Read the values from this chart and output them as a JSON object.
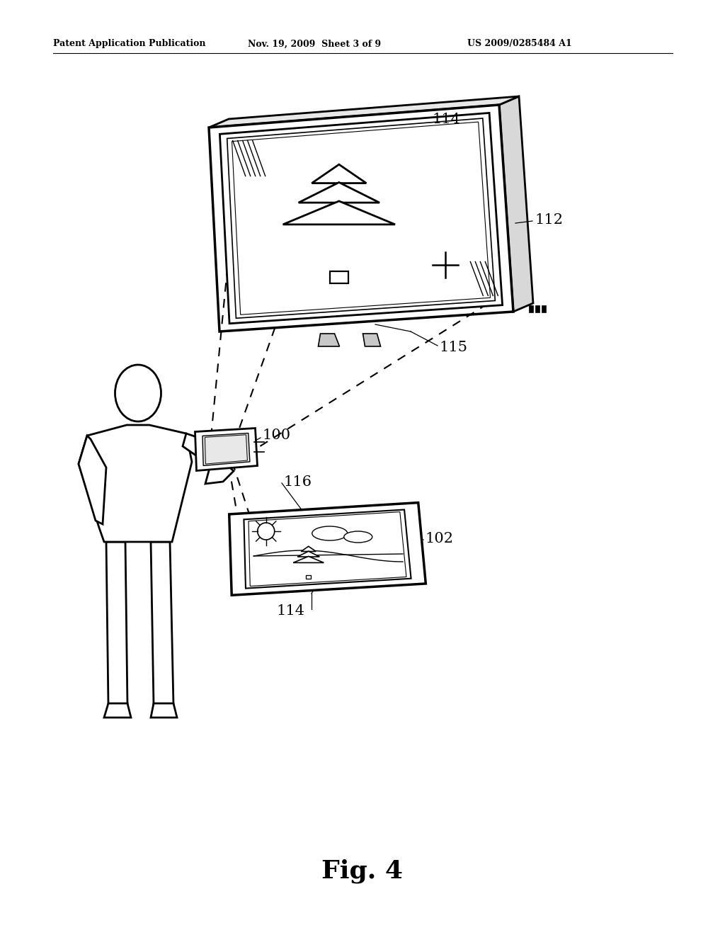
{
  "bg_color": "#ffffff",
  "line_color": "#000000",
  "header_left": "Patent Application Publication",
  "header_mid": "Nov. 19, 2009  Sheet 3 of 9",
  "header_right": "US 2009/0285484 A1",
  "figure_label": "Fig. 4",
  "figsize": [
    10.24,
    13.2
  ],
  "dpi": 100
}
